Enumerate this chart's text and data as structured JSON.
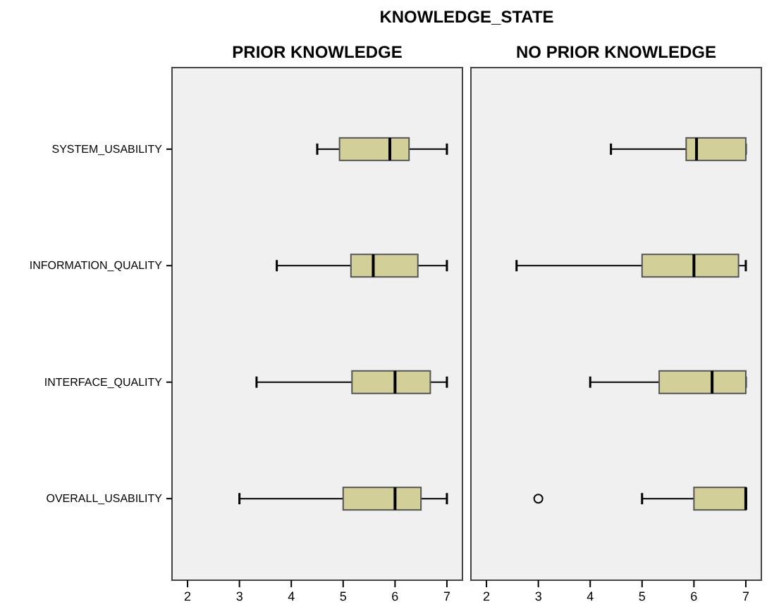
{
  "chart_data": [
    {
      "type": "box",
      "title": "KNOWLEDGE_STATE",
      "subtitle": "PRIOR KNOWLEDGE",
      "orientation": "horizontal",
      "categories": [
        "SYSTEM_USABILITY",
        "INFORMATION_QUALITY",
        "INTERFACE_QUALITY",
        "OVERALL_USABILITY"
      ],
      "xlim": [
        1.7,
        7.3
      ],
      "xticks": [
        2,
        3,
        4,
        5,
        6,
        7
      ],
      "grid": false,
      "series": [
        {
          "color": "#d3cf98",
          "boxes": [
            {
              "low": 4.5,
              "q1": 4.93,
              "median": 5.9,
              "q3": 6.27,
              "high": 7
            },
            {
              "low": 3.72,
              "q1": 5.15,
              "median": 5.58,
              "q3": 6.44,
              "high": 7
            },
            {
              "low": 3.33,
              "q1": 5.17,
              "median": 6,
              "q3": 6.68,
              "high": 7
            },
            {
              "low": 3,
              "q1": 5,
              "median": 6,
              "q3": 6.5,
              "high": 7
            }
          ]
        }
      ]
    },
    {
      "type": "box",
      "subtitle": "NO PRIOR KNOWLEDGE",
      "orientation": "horizontal",
      "tick_labels": "x",
      "xlim": [
        1.7,
        7.3
      ],
      "xticks": [
        2,
        3,
        4,
        5,
        6,
        7
      ],
      "grid": false,
      "series": [
        {
          "color": "#d3cf98",
          "boxes": [
            {
              "low": 4.4,
              "q1": 5.85,
              "median": 6.05,
              "q3": 7,
              "high": 7
            },
            {
              "low": 2.58,
              "q1": 5,
              "median": 6,
              "q3": 6.86,
              "high": 7
            },
            {
              "low": 4,
              "q1": 5.33,
              "median": 6.35,
              "q3": 7,
              "high": 7
            },
            {
              "low": 5,
              "q1": 6,
              "median": 7,
              "q3": 7,
              "high": 7,
              "outliers": [
                3
              ]
            }
          ]
        }
      ]
    }
  ]
}
